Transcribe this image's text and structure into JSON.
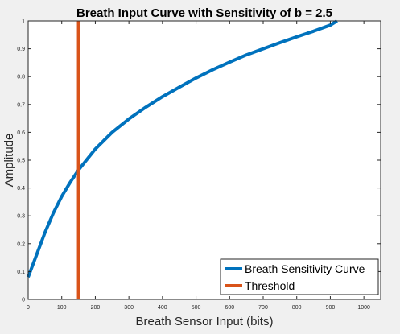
{
  "chart_data": {
    "type": "line",
    "title": "Breath Input Curve with Sensitivity of b = 2.5",
    "xlabel": "Breath Sensor Input (bits)",
    "ylabel": "Amplitude",
    "xlim": [
      0,
      1050
    ],
    "ylim": [
      0,
      1
    ],
    "xticks": [
      0,
      100,
      200,
      300,
      400,
      500,
      600,
      700,
      800,
      900,
      1000
    ],
    "yticks": [
      0,
      0.1,
      0.2,
      0.3,
      0.4,
      0.5,
      0.6,
      0.7,
      0.8,
      0.9,
      1
    ],
    "grid": false,
    "legend_position": "bottom-right",
    "series": [
      {
        "name": "Breath Sensitivity Curve",
        "color": "#0072BD",
        "points": [
          [
            0,
            0.08
          ],
          [
            25,
            0.16
          ],
          [
            50,
            0.24
          ],
          [
            75,
            0.31
          ],
          [
            100,
            0.37
          ],
          [
            125,
            0.42
          ],
          [
            150,
            0.465
          ],
          [
            200,
            0.54
          ],
          [
            250,
            0.6
          ],
          [
            300,
            0.648
          ],
          [
            350,
            0.69
          ],
          [
            400,
            0.728
          ],
          [
            450,
            0.762
          ],
          [
            500,
            0.795
          ],
          [
            550,
            0.825
          ],
          [
            600,
            0.852
          ],
          [
            650,
            0.878
          ],
          [
            700,
            0.9
          ],
          [
            750,
            0.922
          ],
          [
            800,
            0.943
          ],
          [
            850,
            0.963
          ],
          [
            900,
            0.985
          ],
          [
            920,
            1.0
          ]
        ]
      },
      {
        "name": "Threshold",
        "color": "#D95319",
        "points": [
          [
            150,
            0
          ],
          [
            150,
            1
          ]
        ]
      }
    ]
  }
}
